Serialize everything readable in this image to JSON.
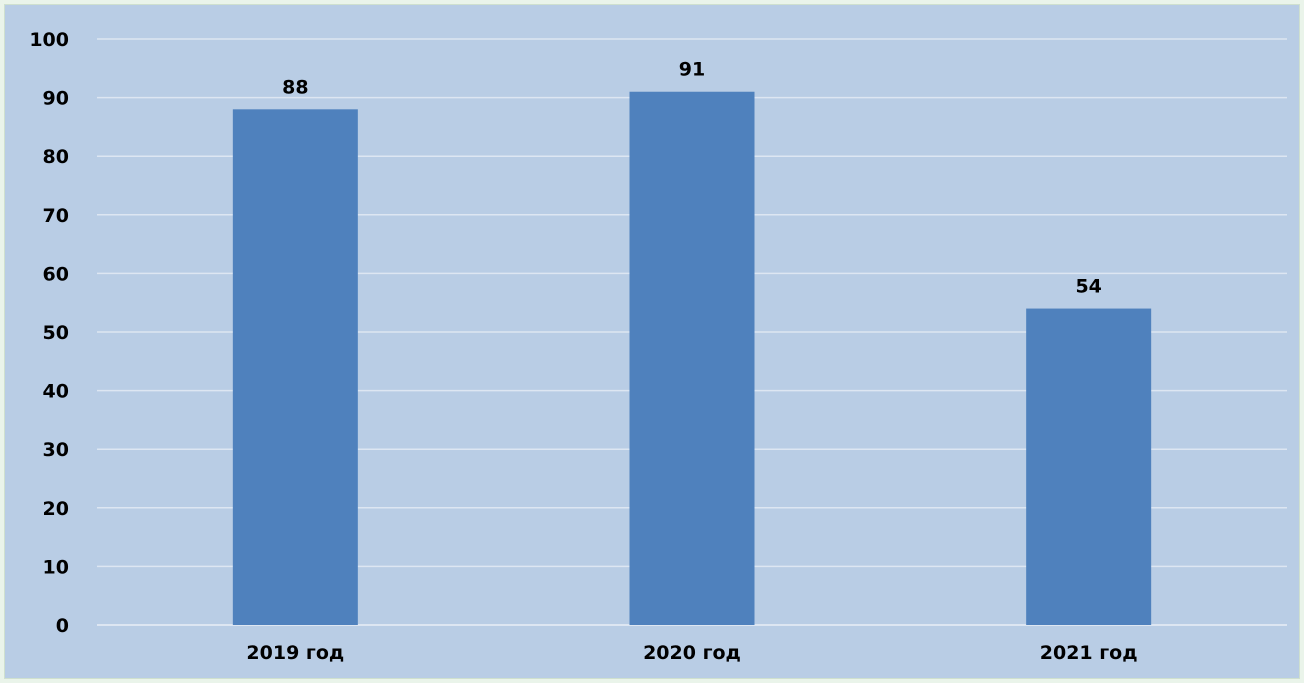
{
  "chart_data": {
    "type": "bar",
    "categories": [
      "2019 год",
      "2020 год",
      "2021 год"
    ],
    "values": [
      88,
      91,
      54
    ],
    "data_labels": [
      "88",
      "91",
      "54"
    ],
    "title": "",
    "xlabel": "",
    "ylabel": "",
    "ylim": [
      0,
      100
    ],
    "yticks": [
      0,
      10,
      20,
      30,
      40,
      50,
      60,
      70,
      80,
      90,
      100
    ],
    "grid": true,
    "legend": "none",
    "colors": {
      "bar": "#4f81bd",
      "plot_background": "#b9cde5",
      "gridline": "#dde6f2",
      "page_background": "#eaf4ea"
    }
  }
}
